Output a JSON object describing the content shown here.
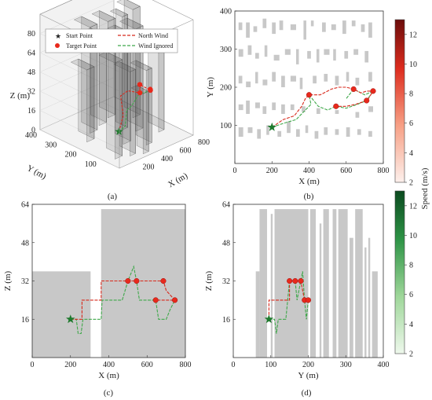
{
  "colors": {
    "building": "#c8c8c8",
    "start": "#1f7a2e",
    "target": "#e8291c",
    "north_wind": "#d8291c",
    "wind_ignored": "#3fa84a",
    "box_3d": "#9a9a9a"
  },
  "legend": {
    "start_label": "Start Point",
    "target_label": "Target Point",
    "north_label": "North Wind",
    "ignored_label": "Wind Ignored"
  },
  "colorbars": {
    "label": "Speed (m/s)",
    "red": {
      "ticks": [
        2,
        4,
        6,
        8,
        10,
        12
      ],
      "range": [
        2,
        13
      ]
    },
    "green": {
      "ticks": [
        2,
        4,
        6,
        8,
        10,
        12
      ],
      "range": [
        2,
        13
      ]
    }
  },
  "chart_data": [
    {
      "panel": "(a)",
      "type": "scatter",
      "xlabel": "X (m)",
      "ylabel": "Y (m)",
      "zlabel": "Z (m)",
      "xticks": [
        200,
        400,
        600,
        800
      ],
      "yticks": [
        100,
        200,
        300,
        400
      ],
      "zticks": [
        0,
        16,
        32,
        48,
        64,
        80
      ],
      "legend_position": "top"
    },
    {
      "panel": "(b)",
      "type": "line",
      "xlabel": "X (m)",
      "ylabel": "Y (m)",
      "xlim": [
        0,
        800
      ],
      "ylim": [
        0,
        400
      ],
      "xticks": [
        0,
        200,
        400,
        600,
        800
      ],
      "yticks": [
        100,
        200,
        300,
        400
      ],
      "start": [
        200,
        95
      ],
      "targets": [
        [
          400,
          180
        ],
        [
          545,
          150
        ],
        [
          640,
          195
        ],
        [
          710,
          165
        ],
        [
          745,
          190
        ]
      ],
      "north_wind": [
        [
          200,
          95
        ],
        [
          260,
          115
        ],
        [
          320,
          125
        ],
        [
          360,
          150
        ],
        [
          380,
          170
        ],
        [
          400,
          180
        ],
        [
          460,
          180
        ],
        [
          520,
          195
        ],
        [
          560,
          200
        ],
        [
          600,
          200
        ],
        [
          640,
          195
        ],
        [
          680,
          185
        ],
        [
          710,
          190
        ],
        [
          745,
          190
        ],
        [
          720,
          170
        ],
        [
          710,
          165
        ],
        [
          650,
          155
        ],
        [
          600,
          150
        ],
        [
          545,
          150
        ]
      ],
      "wind_ignored": [
        [
          200,
          95
        ],
        [
          260,
          105
        ],
        [
          330,
          115
        ],
        [
          370,
          135
        ],
        [
          410,
          155
        ],
        [
          400,
          180
        ],
        [
          450,
          150
        ],
        [
          500,
          140
        ],
        [
          545,
          150
        ],
        [
          600,
          145
        ],
        [
          660,
          155
        ],
        [
          710,
          165
        ],
        [
          745,
          190
        ],
        [
          700,
          180
        ],
        [
          640,
          195
        ],
        [
          600,
          170
        ]
      ]
    },
    {
      "panel": "(c)",
      "type": "line",
      "xlabel": "X (m)",
      "ylabel": "Z (m)",
      "xlim": [
        0,
        800
      ],
      "ylim": [
        0,
        64
      ],
      "xticks": [
        0,
        200,
        400,
        600,
        800
      ],
      "yticks": [
        16,
        32,
        48,
        64
      ],
      "start": [
        200,
        16
      ],
      "targets": [
        [
          500,
          32
        ],
        [
          545,
          32
        ],
        [
          685,
          32
        ],
        [
          645,
          24
        ],
        [
          745,
          24
        ]
      ],
      "north_wind": [
        [
          200,
          16
        ],
        [
          260,
          16
        ],
        [
          260,
          24
        ],
        [
          360,
          24
        ],
        [
          360,
          32
        ],
        [
          500,
          32
        ],
        [
          545,
          32
        ],
        [
          685,
          32
        ],
        [
          700,
          28
        ],
        [
          745,
          24
        ],
        [
          700,
          24
        ],
        [
          645,
          24
        ]
      ],
      "wind_ignored": [
        [
          200,
          16
        ],
        [
          230,
          16
        ],
        [
          240,
          10
        ],
        [
          255,
          10
        ],
        [
          265,
          16
        ],
        [
          360,
          16
        ],
        [
          365,
          24
        ],
        [
          470,
          24
        ],
        [
          500,
          32
        ],
        [
          520,
          36
        ],
        [
          530,
          38
        ],
        [
          545,
          32
        ],
        [
          560,
          24
        ],
        [
          620,
          24
        ],
        [
          645,
          24
        ],
        [
          660,
          16
        ],
        [
          700,
          16
        ],
        [
          720,
          20
        ],
        [
          745,
          24
        ]
      ]
    },
    {
      "panel": "(d)",
      "type": "line",
      "xlabel": "Y (m)",
      "ylabel": "Z (m)",
      "xlim": [
        0,
        400
      ],
      "ylim": [
        0,
        64
      ],
      "xticks": [
        0,
        100,
        200,
        300,
        400
      ],
      "yticks": [
        16,
        32,
        48,
        64
      ],
      "start": [
        95,
        16
      ],
      "targets": [
        [
          150,
          32
        ],
        [
          165,
          32
        ],
        [
          180,
          32
        ],
        [
          190,
          24
        ],
        [
          200,
          24
        ]
      ],
      "north_wind": [
        [
          95,
          16
        ],
        [
          95,
          24
        ],
        [
          150,
          24
        ],
        [
          150,
          32
        ],
        [
          165,
          32
        ],
        [
          180,
          32
        ],
        [
          190,
          24
        ],
        [
          200,
          24
        ]
      ],
      "wind_ignored": [
        [
          95,
          16
        ],
        [
          110,
          16
        ],
        [
          115,
          10
        ],
        [
          120,
          16
        ],
        [
          140,
          16
        ],
        [
          150,
          32
        ],
        [
          165,
          32
        ],
        [
          170,
          24
        ],
        [
          180,
          32
        ],
        [
          185,
          36
        ],
        [
          190,
          24
        ],
        [
          195,
          16
        ],
        [
          200,
          24
        ]
      ]
    }
  ],
  "captions": {
    "a": "(a)",
    "b": "(b)",
    "c": "(c)",
    "d": "(d)"
  }
}
